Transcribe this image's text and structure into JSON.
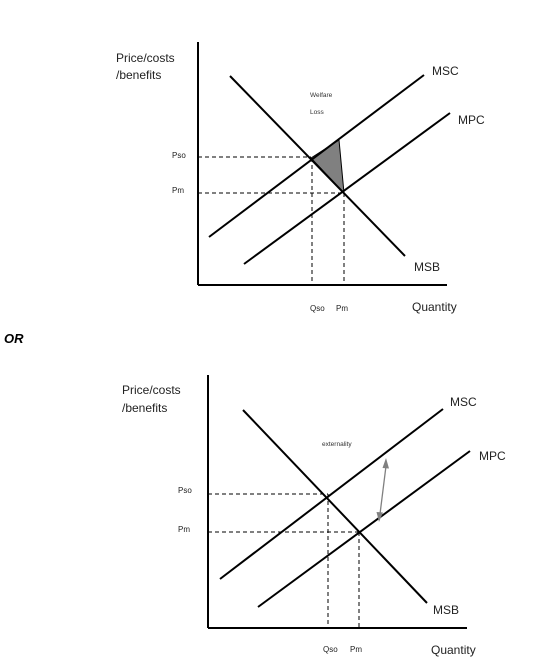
{
  "separator": "OR",
  "diagram_welfare": {
    "ylabel_line1": "Price/costs",
    "ylabel_line2": "/benefits",
    "xlabel": "Quantity",
    "curves": {
      "msc": "MSC",
      "mpc": "MPC",
      "msb": "MSB"
    },
    "price_ticks": {
      "pso": "Pso",
      "pm": "Pm"
    },
    "qty_ticks": {
      "qso": "Qso",
      "qm": "Pm"
    },
    "annotation_line1": "Welfare",
    "annotation_line2": "Loss",
    "fill_color": "#808080"
  },
  "diagram_externality": {
    "ylabel_line1": "Price/costs",
    "ylabel_line2": "/benefits",
    "xlabel": "Quantity",
    "curves": {
      "msc": "MSC",
      "mpc": "MPC",
      "msb": "MSB"
    },
    "price_ticks": {
      "pso": "Pso",
      "pm": "Pm"
    },
    "qty_ticks": {
      "qso": "Qso",
      "qm": "Pm"
    },
    "annotation": "externality",
    "arrow_color": "#808080"
  }
}
